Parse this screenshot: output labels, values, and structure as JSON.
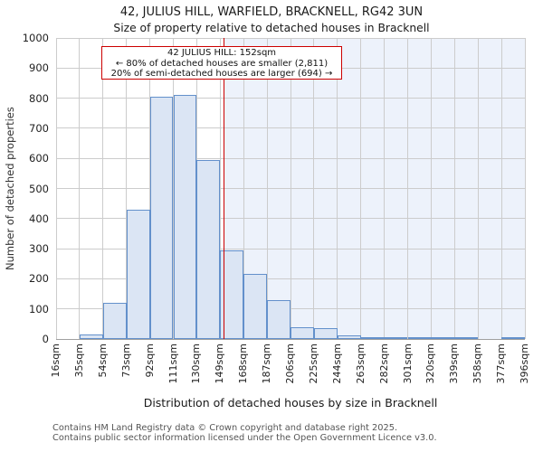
{
  "header": {
    "title": "42, JULIUS HILL, WARFIELD, BRACKNELL, RG42 3UN",
    "subtitle": "Size of property relative to detached houses in Bracknell"
  },
  "annotation": {
    "line1": "42 JULIUS HILL: 152sqm",
    "line2": "← 80% of detached houses are smaller (2,811)",
    "line3": "20% of semi-detached houses are larger (694) →"
  },
  "chart_data": {
    "type": "bar",
    "title": "42, JULIUS HILL, WARFIELD, BRACKNELL, RG42 3UN — Size of property relative to detached houses in Bracknell",
    "xlabel": "Distribution of detached houses by size in Bracknell",
    "ylabel": "Number of detached properties",
    "bin_edges": [
      16,
      35,
      54,
      73,
      92,
      111,
      130,
      149,
      168,
      187,
      206,
      225,
      244,
      263,
      282,
      301,
      320,
      339,
      358,
      377,
      396
    ],
    "x_tick_labels": [
      "16sqm",
      "35sqm",
      "54sqm",
      "73sqm",
      "92sqm",
      "111sqm",
      "130sqm",
      "149sqm",
      "168sqm",
      "187sqm",
      "206sqm",
      "225sqm",
      "244sqm",
      "263sqm",
      "282sqm",
      "301sqm",
      "320sqm",
      "339sqm",
      "358sqm",
      "377sqm",
      "396sqm"
    ],
    "values": [
      0,
      15,
      120,
      430,
      805,
      810,
      595,
      295,
      215,
      130,
      40,
      35,
      12,
      6,
      6,
      5,
      5,
      5,
      0,
      4
    ],
    "y_ticks": [
      0,
      100,
      200,
      300,
      400,
      500,
      600,
      700,
      800,
      900,
      1000
    ],
    "ylim": [
      0,
      1000
    ],
    "xlim": [
      16,
      396
    ],
    "grid": true,
    "legend": null,
    "marker": {
      "label": "42 JULIUS HILL",
      "value_sqm": 152,
      "color": "#cc0000"
    },
    "shaded_region": {
      "from": 152,
      "to": 396,
      "color": "#edf2fb"
    },
    "colors": {
      "bar_fill": "#dbe5f4",
      "bar_border": "#6390cb",
      "grid": "#cccccc",
      "axis": "#a0a0a0"
    }
  },
  "footer": {
    "line1": "Contains HM Land Registry data © Crown copyright and database right 2025.",
    "line2": "Contains public sector information licensed under the Open Government Licence v3.0."
  }
}
